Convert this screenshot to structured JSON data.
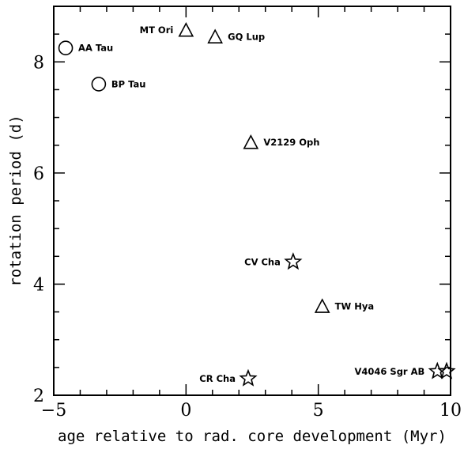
{
  "chart_data": {
    "type": "scatter",
    "xlabel": "age relative to rad. core development (Myr)",
    "ylabel": "rotation period (d)",
    "xlim": [
      -5,
      10
    ],
    "ylim": [
      2,
      9
    ],
    "x_ticks": [
      -5,
      0,
      5,
      10
    ],
    "y_ticks": [
      2,
      4,
      6,
      8
    ],
    "x_tick_labels": [
      "−5",
      "0",
      "5",
      "10"
    ],
    "y_tick_labels": [
      "2",
      "4",
      "6",
      "8"
    ],
    "x_minor_step": 1,
    "y_minor_step": 0.5,
    "grid": false,
    "points": [
      {
        "label": "AA Tau",
        "x": -4.55,
        "y": 8.25,
        "marker": "circle",
        "label_side": "right"
      },
      {
        "label": "BP Tau",
        "x": -3.3,
        "y": 7.6,
        "marker": "circle",
        "label_side": "right"
      },
      {
        "label": "MT Ori",
        "x": 0.0,
        "y": 8.57,
        "marker": "triangle",
        "label_side": "left"
      },
      {
        "label": "GQ Lup",
        "x": 1.1,
        "y": 8.45,
        "marker": "triangle",
        "label_side": "right"
      },
      {
        "label": "V2129 Oph",
        "x": 2.45,
        "y": 6.55,
        "marker": "triangle",
        "label_side": "right"
      },
      {
        "label": "CV Cha",
        "x": 4.05,
        "y": 4.4,
        "marker": "star",
        "label_side": "left"
      },
      {
        "label": "TW Hya",
        "x": 5.15,
        "y": 3.6,
        "marker": "triangle",
        "label_side": "right"
      },
      {
        "label": "CR Cha",
        "x": 2.35,
        "y": 2.3,
        "marker": "star",
        "label_side": "left"
      },
      {
        "label": "V4046 Sgr AB",
        "x": 9.5,
        "y": 2.43,
        "marker": "star",
        "label_side": "left"
      },
      {
        "label": "",
        "x": 9.85,
        "y": 2.43,
        "marker": "star",
        "label_side": "none"
      }
    ]
  }
}
